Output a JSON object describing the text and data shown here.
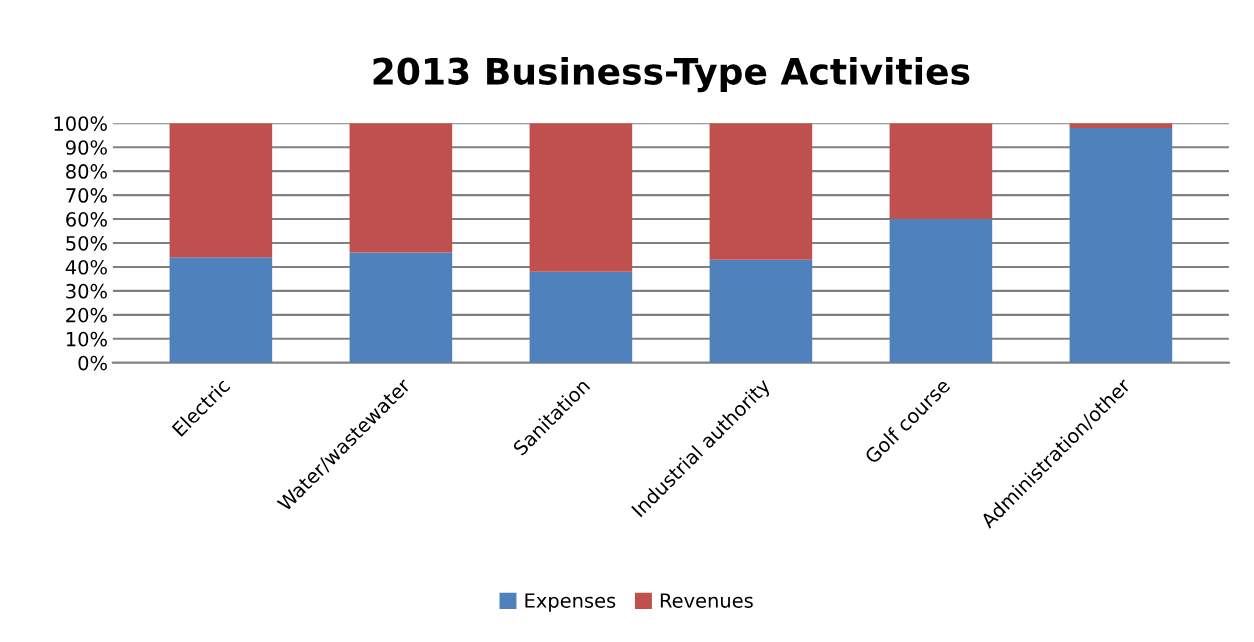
{
  "chart_data": {
    "type": "bar",
    "stacked": true,
    "title": "2013 Business-Type Activities",
    "categories": [
      "Electric",
      "Water/wastewater",
      "Sanitation",
      "Industrial authority",
      "Golf course",
      "Administration/other"
    ],
    "series": [
      {
        "name": "Expenses",
        "color": "#4f81bd",
        "values": [
          44,
          46,
          38,
          43,
          60,
          98
        ]
      },
      {
        "name": "Revenues",
        "color": "#c0504d",
        "values": [
          56,
          54,
          62,
          57,
          40,
          2
        ]
      }
    ],
    "ylim": [
      0,
      100
    ],
    "yticks": [
      {
        "value": 0,
        "label": "0%"
      },
      {
        "value": 10,
        "label": "10%"
      },
      {
        "value": 20,
        "label": "20%"
      },
      {
        "value": 30,
        "label": "30%"
      },
      {
        "value": 40,
        "label": "40%"
      },
      {
        "value": 50,
        "label": "50%"
      },
      {
        "value": 60,
        "label": "60%"
      },
      {
        "value": 70,
        "label": "70%"
      },
      {
        "value": 80,
        "label": "80%"
      },
      {
        "value": 90,
        "label": "90%"
      },
      {
        "value": 100,
        "label": "100%"
      }
    ],
    "grid": "y",
    "legend": "bottom"
  }
}
